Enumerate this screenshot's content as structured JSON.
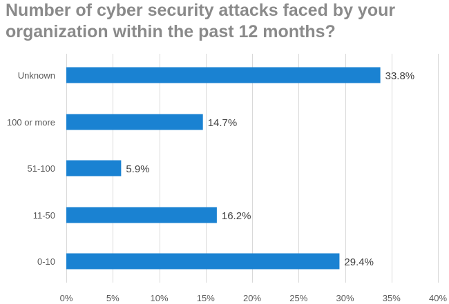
{
  "chart_data": {
    "type": "bar",
    "orientation": "horizontal",
    "title": "Number of cyber security attacks faced by your organization within the past 12 months?",
    "categories": [
      "Unknown",
      "100 or more",
      "51-100",
      "11-50",
      "0-10"
    ],
    "values": [
      33.8,
      14.7,
      5.9,
      16.2,
      29.4
    ],
    "data_labels": [
      "33.8%",
      "14.7%",
      "5.9%",
      "16.2%",
      "29.4%"
    ],
    "xlabel": "",
    "ylabel": "",
    "xlim": [
      0,
      40
    ],
    "x_ticks": [
      0,
      5,
      10,
      15,
      20,
      25,
      30,
      35,
      40
    ],
    "x_tick_labels": [
      "0%",
      "5%",
      "10%",
      "15%",
      "20%",
      "25%",
      "30%",
      "35%",
      "40%"
    ],
    "grid": true,
    "legend": "none",
    "bar_color": "#1a82d2"
  }
}
